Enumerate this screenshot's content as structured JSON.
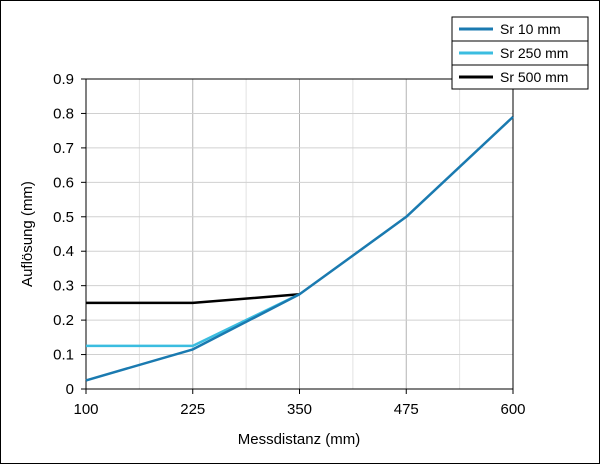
{
  "chart_data": {
    "type": "line",
    "xlabel": "Messdistanz (mm)",
    "ylabel": "Auflösung (mm)",
    "xlim": [
      100,
      600
    ],
    "ylim": [
      0,
      0.9
    ],
    "x_ticks": [
      "100",
      "225",
      "350",
      "475",
      "600"
    ],
    "y_ticks": [
      "0",
      "0.1",
      "0.2",
      "0.3",
      "0.4",
      "0.5",
      "0.6",
      "0.7",
      "0.8",
      "0.9"
    ],
    "grid": true,
    "legend_position": "top-right",
    "series": [
      {
        "name": "Sr 10 mm",
        "color": "#1a7ab0",
        "x": [
          100,
          225,
          350,
          475,
          600
        ],
        "y": [
          0.025,
          0.115,
          0.275,
          0.5,
          0.79
        ]
      },
      {
        "name": "Sr 250 mm",
        "color": "#3bbde0",
        "x": [
          100,
          225,
          350
        ],
        "y": [
          0.125,
          0.125,
          0.275
        ]
      },
      {
        "name": "Sr 500 mm",
        "color": "#000000",
        "x": [
          100,
          225,
          350
        ],
        "y": [
          0.25,
          0.25,
          0.275
        ]
      }
    ]
  }
}
